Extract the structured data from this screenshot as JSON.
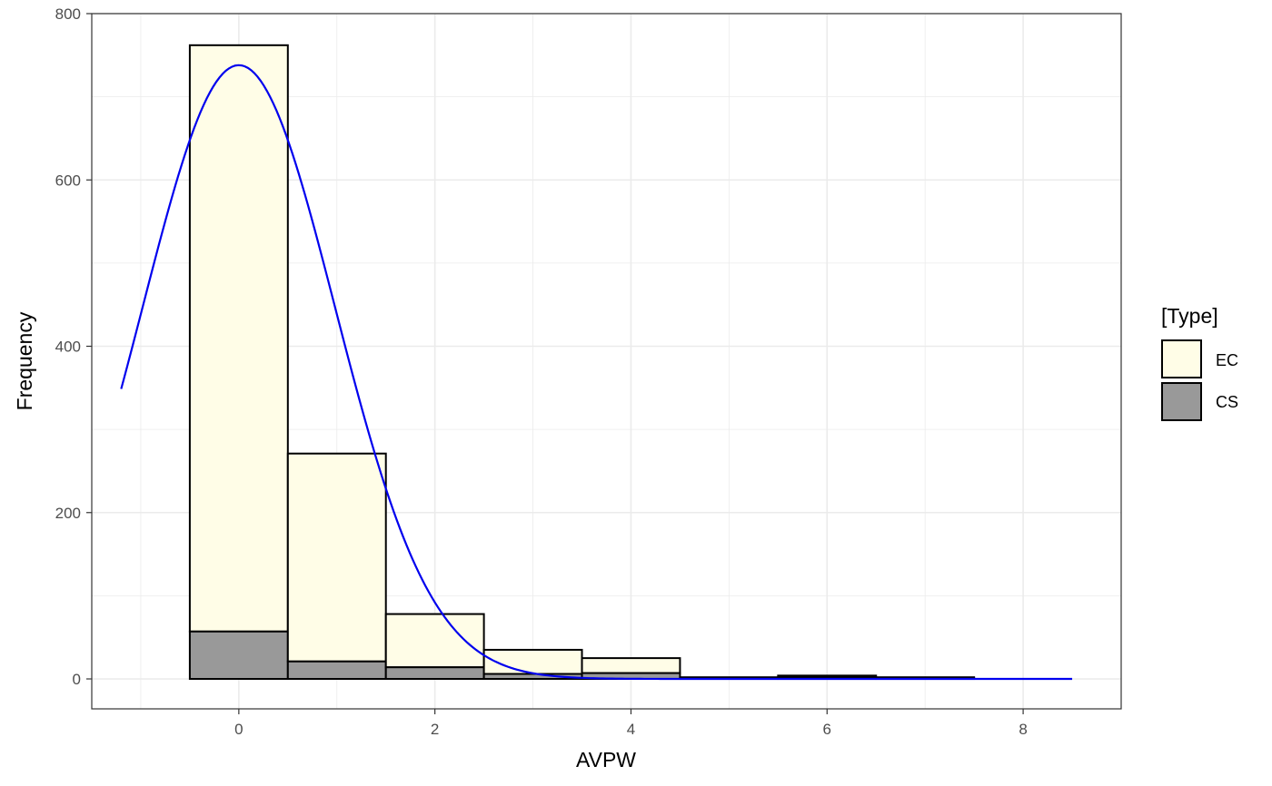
{
  "chart_data": {
    "type": "bar",
    "stacked": true,
    "xlabel": "AVPW",
    "ylabel": "Frequency",
    "xlim": [
      -1.5,
      9.0
    ],
    "ylim": [
      -36,
      800
    ],
    "x_ticks": [
      0,
      2,
      4,
      6,
      8
    ],
    "y_ticks": [
      0,
      200,
      400,
      600,
      800
    ],
    "grid": true,
    "bins": [
      {
        "x0": -0.5,
        "x1": 0.5,
        "EC": 705,
        "CS": 57
      },
      {
        "x0": 0.5,
        "x1": 1.5,
        "EC": 250,
        "CS": 21
      },
      {
        "x0": 1.5,
        "x1": 2.5,
        "EC": 64,
        "CS": 14
      },
      {
        "x0": 2.5,
        "x1": 3.5,
        "EC": 29,
        "CS": 6
      },
      {
        "x0": 3.5,
        "x1": 4.5,
        "EC": 18,
        "CS": 7
      },
      {
        "x0": 4.5,
        "x1": 5.5,
        "EC": 1,
        "CS": 1
      },
      {
        "x0": 5.5,
        "x1": 6.5,
        "EC": 2,
        "CS": 2
      },
      {
        "x0": 6.5,
        "x1": 7.5,
        "EC": 1,
        "CS": 1
      }
    ],
    "series": [
      {
        "name": "EC",
        "color": "#fffde7"
      },
      {
        "name": "CS",
        "color": "#999999"
      }
    ],
    "density_curve": {
      "color": "#0000ee",
      "x_range": [
        -1.2,
        8.5
      ],
      "peak_x": 0.0,
      "peak_y": 738,
      "sigma": 0.98
    },
    "legend": {
      "title": "[Type]",
      "placement": "right"
    }
  }
}
